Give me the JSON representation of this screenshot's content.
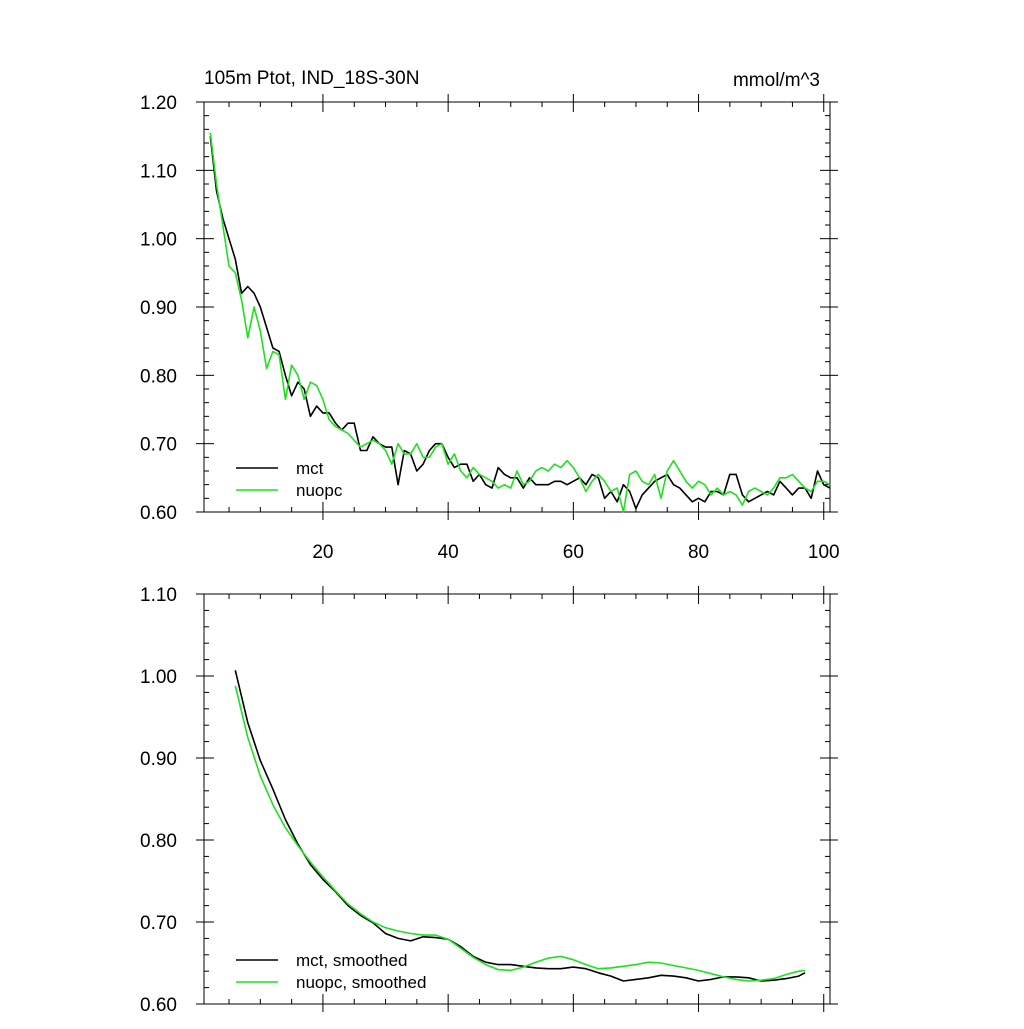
{
  "colors": {
    "mct": "#000000",
    "nuopc": "#1fe01f"
  },
  "chart_data": [
    {
      "type": "line",
      "title": "105m Ptot, IND_18S-30N",
      "units": "mmol/m^3",
      "xlim": [
        1,
        101
      ],
      "ylim": [
        0.6,
        1.2
      ],
      "xticks": [
        20,
        40,
        60,
        80,
        100
      ],
      "yticks": [
        "0.60",
        "0.70",
        "0.80",
        "0.90",
        "1.00",
        "1.10",
        "1.20"
      ],
      "legend_position": "bottom-left",
      "series": [
        {
          "name": "mct",
          "color": "#000000",
          "x": [
            2,
            3,
            4,
            5,
            6,
            7,
            8,
            9,
            10,
            11,
            12,
            13,
            14,
            15,
            16,
            17,
            18,
            19,
            20,
            21,
            22,
            23,
            24,
            25,
            26,
            27,
            28,
            29,
            30,
            31,
            32,
            33,
            34,
            35,
            36,
            37,
            38,
            39,
            40,
            41,
            42,
            43,
            44,
            45,
            46,
            47,
            48,
            49,
            50,
            51,
            52,
            53,
            54,
            55,
            56,
            57,
            58,
            59,
            60,
            61,
            62,
            63,
            64,
            65,
            66,
            67,
            68,
            69,
            70,
            71,
            72,
            73,
            74,
            75,
            76,
            77,
            78,
            79,
            80,
            81,
            82,
            83,
            84,
            85,
            86,
            87,
            88,
            89,
            90,
            91,
            92,
            93,
            94,
            95,
            96,
            97,
            98,
            99,
            100,
            101
          ],
          "y": [
            1.15,
            1.07,
            1.03,
            1.0,
            0.97,
            0.92,
            0.93,
            0.92,
            0.9,
            0.87,
            0.84,
            0.835,
            0.8,
            0.77,
            0.79,
            0.78,
            0.74,
            0.755,
            0.745,
            0.745,
            0.73,
            0.72,
            0.73,
            0.73,
            0.69,
            0.69,
            0.71,
            0.7,
            0.695,
            0.695,
            0.64,
            0.69,
            0.685,
            0.66,
            0.67,
            0.69,
            0.7,
            0.7,
            0.68,
            0.665,
            0.67,
            0.67,
            0.645,
            0.655,
            0.64,
            0.635,
            0.665,
            0.655,
            0.65,
            0.65,
            0.635,
            0.65,
            0.64,
            0.64,
            0.64,
            0.645,
            0.645,
            0.64,
            0.645,
            0.65,
            0.64,
            0.655,
            0.65,
            0.62,
            0.63,
            0.615,
            0.64,
            0.63,
            0.605,
            0.625,
            0.635,
            0.645,
            0.65,
            0.655,
            0.64,
            0.635,
            0.625,
            0.615,
            0.62,
            0.615,
            0.63,
            0.63,
            0.625,
            0.655,
            0.655,
            0.625,
            0.615,
            0.62,
            0.625,
            0.63,
            0.625,
            0.645,
            0.635,
            0.625,
            0.635,
            0.635,
            0.62,
            0.66,
            0.64,
            0.635
          ]
        },
        {
          "name": "nuopc",
          "color": "#1fe01f",
          "x": [
            2,
            3,
            4,
            5,
            6,
            7,
            8,
            9,
            10,
            11,
            12,
            13,
            14,
            15,
            16,
            17,
            18,
            19,
            20,
            21,
            22,
            23,
            24,
            25,
            26,
            27,
            28,
            29,
            30,
            31,
            32,
            33,
            34,
            35,
            36,
            37,
            38,
            39,
            40,
            41,
            42,
            43,
            44,
            45,
            46,
            47,
            48,
            49,
            50,
            51,
            52,
            53,
            54,
            55,
            56,
            57,
            58,
            59,
            60,
            61,
            62,
            63,
            64,
            65,
            66,
            67,
            68,
            69,
            70,
            71,
            72,
            73,
            74,
            75,
            76,
            77,
            78,
            79,
            80,
            81,
            82,
            83,
            84,
            85,
            86,
            87,
            88,
            89,
            90,
            91,
            92,
            93,
            94,
            95,
            96,
            97,
            98,
            99,
            100,
            101
          ],
          "y": [
            1.155,
            1.08,
            1.02,
            0.96,
            0.95,
            0.91,
            0.855,
            0.9,
            0.865,
            0.81,
            0.835,
            0.83,
            0.765,
            0.815,
            0.8,
            0.765,
            0.79,
            0.785,
            0.765,
            0.735,
            0.725,
            0.72,
            0.715,
            0.705,
            0.695,
            0.7,
            0.705,
            0.7,
            0.69,
            0.67,
            0.7,
            0.685,
            0.685,
            0.7,
            0.68,
            0.68,
            0.695,
            0.7,
            0.67,
            0.685,
            0.66,
            0.65,
            0.665,
            0.655,
            0.65,
            0.645,
            0.635,
            0.64,
            0.635,
            0.66,
            0.64,
            0.645,
            0.66,
            0.665,
            0.66,
            0.67,
            0.665,
            0.675,
            0.665,
            0.65,
            0.63,
            0.645,
            0.655,
            0.645,
            0.63,
            0.635,
            0.6,
            0.655,
            0.66,
            0.645,
            0.64,
            0.655,
            0.62,
            0.66,
            0.675,
            0.66,
            0.645,
            0.635,
            0.645,
            0.64,
            0.625,
            0.635,
            0.625,
            0.63,
            0.625,
            0.61,
            0.63,
            0.635,
            0.63,
            0.625,
            0.635,
            0.65,
            0.65,
            0.655,
            0.645,
            0.635,
            0.63,
            0.645,
            0.645,
            0.64
          ]
        }
      ]
    },
    {
      "type": "line",
      "xlim": [
        1,
        101
      ],
      "ylim": [
        0.6,
        1.1
      ],
      "xticks": [
        20,
        40,
        60,
        80,
        100
      ],
      "yticks": [
        "0.60",
        "0.70",
        "0.80",
        "0.90",
        "1.00",
        "1.10"
      ],
      "legend_position": "bottom-left",
      "series": [
        {
          "name": "mct, smoothed",
          "color": "#000000",
          "x": [
            6,
            8,
            10,
            12,
            14,
            16,
            18,
            20,
            22,
            24,
            26,
            28,
            30,
            32,
            34,
            36,
            38,
            40,
            42,
            44,
            46,
            48,
            50,
            52,
            54,
            56,
            58,
            60,
            62,
            64,
            66,
            68,
            70,
            72,
            74,
            76,
            78,
            80,
            82,
            84,
            86,
            88,
            90,
            92,
            94,
            96,
            97
          ],
          "y": [
            1.007,
            0.943,
            0.897,
            0.862,
            0.825,
            0.795,
            0.77,
            0.752,
            0.737,
            0.72,
            0.708,
            0.699,
            0.686,
            0.68,
            0.677,
            0.682,
            0.681,
            0.679,
            0.67,
            0.658,
            0.651,
            0.648,
            0.648,
            0.646,
            0.644,
            0.643,
            0.643,
            0.645,
            0.643,
            0.638,
            0.634,
            0.628,
            0.63,
            0.632,
            0.635,
            0.634,
            0.632,
            0.628,
            0.63,
            0.633,
            0.633,
            0.632,
            0.628,
            0.629,
            0.631,
            0.634,
            0.638
          ]
        },
        {
          "name": "nuopc, smoothed",
          "color": "#1fe01f",
          "x": [
            6,
            8,
            10,
            12,
            14,
            16,
            18,
            20,
            22,
            24,
            26,
            28,
            30,
            32,
            34,
            36,
            38,
            40,
            42,
            44,
            46,
            48,
            50,
            52,
            54,
            56,
            58,
            60,
            62,
            64,
            66,
            68,
            70,
            72,
            74,
            76,
            78,
            80,
            82,
            84,
            86,
            88,
            90,
            92,
            94,
            96,
            97
          ],
          "y": [
            0.988,
            0.925,
            0.878,
            0.843,
            0.815,
            0.793,
            0.773,
            0.755,
            0.738,
            0.722,
            0.71,
            0.7,
            0.693,
            0.689,
            0.686,
            0.684,
            0.684,
            0.679,
            0.668,
            0.657,
            0.648,
            0.642,
            0.641,
            0.645,
            0.651,
            0.656,
            0.658,
            0.654,
            0.648,
            0.643,
            0.644,
            0.646,
            0.648,
            0.651,
            0.65,
            0.647,
            0.644,
            0.641,
            0.637,
            0.633,
            0.63,
            0.628,
            0.629,
            0.631,
            0.636,
            0.64,
            0.641
          ]
        }
      ]
    }
  ]
}
